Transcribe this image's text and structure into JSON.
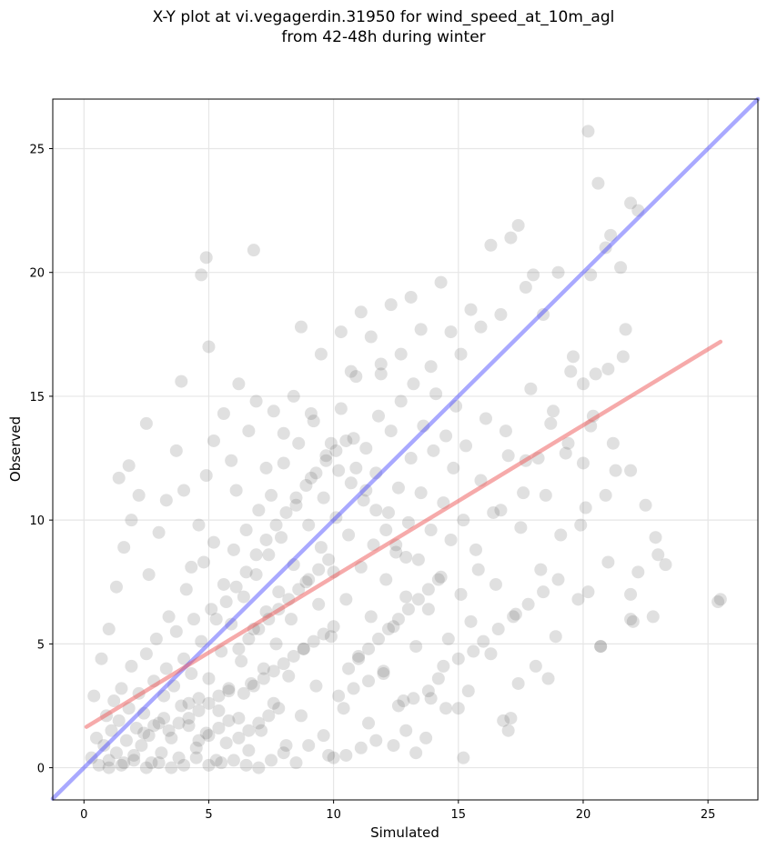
{
  "chart_data": {
    "type": "scatter",
    "title_lines": [
      "X-Y plot at vi.vegagerdin.31950 for wind_speed_at_10m_agl",
      "from 42-48h during winter"
    ],
    "xlabel": "Simulated",
    "ylabel": "Observed",
    "xlim": [
      -1.25,
      27.0
    ],
    "ylim": [
      -1.3,
      27.0
    ],
    "xticks": [
      0,
      5,
      10,
      15,
      20,
      25
    ],
    "yticks": [
      0,
      5,
      10,
      15,
      20,
      25
    ],
    "grid": true,
    "point_color": "#555555",
    "point_opacity": 0.18,
    "reference_line": {
      "name": "1:1",
      "color": "#4040ff",
      "from": [
        -1.25,
        -1.25
      ],
      "to": [
        27.0,
        27.0
      ]
    },
    "fit_line": {
      "color": "#ee5555",
      "from": [
        0.1,
        1.65
      ],
      "to": [
        25.5,
        17.2
      ]
    },
    "points": [
      [
        0.3,
        0.4
      ],
      [
        0.5,
        1.2
      ],
      [
        0.6,
        0.1
      ],
      [
        0.8,
        0.9
      ],
      [
        0.9,
        2.1
      ],
      [
        1.0,
        0.3
      ],
      [
        1.1,
        1.5
      ],
      [
        1.2,
        2.7
      ],
      [
        1.3,
        0.6
      ],
      [
        1.4,
        1.9
      ],
      [
        1.5,
        3.2
      ],
      [
        1.6,
        0.2
      ],
      [
        1.7,
        1.1
      ],
      [
        1.8,
        2.4
      ],
      [
        1.9,
        4.1
      ],
      [
        2.0,
        0.5
      ],
      [
        2.1,
        1.6
      ],
      [
        2.2,
        3.0
      ],
      [
        2.3,
        0.9
      ],
      [
        2.4,
        2.2
      ],
      [
        2.5,
        4.6
      ],
      [
        2.6,
        1.3
      ],
      [
        2.7,
        0.2
      ],
      [
        2.8,
        3.5
      ],
      [
        2.9,
        5.2
      ],
      [
        3.0,
        1.8
      ],
      [
        3.1,
        0.6
      ],
      [
        3.2,
        2.9
      ],
      [
        3.3,
        4.0
      ],
      [
        3.4,
        6.1
      ],
      [
        3.5,
        1.2
      ],
      [
        3.6,
        3.3
      ],
      [
        3.7,
        5.5
      ],
      [
        3.8,
        0.4
      ],
      [
        3.9,
        2.5
      ],
      [
        4.0,
        4.4
      ],
      [
        4.1,
        7.2
      ],
      [
        4.2,
        1.7
      ],
      [
        4.3,
        3.8
      ],
      [
        4.4,
        6.0
      ],
      [
        4.5,
        0.8
      ],
      [
        4.6,
        2.8
      ],
      [
        4.7,
        5.1
      ],
      [
        4.8,
        8.3
      ],
      [
        4.9,
        1.4
      ],
      [
        5.0,
        3.6
      ],
      [
        5.1,
        6.4
      ],
      [
        5.2,
        9.1
      ],
      [
        5.3,
        0.3
      ],
      [
        5.4,
        2.3
      ],
      [
        5.5,
        4.7
      ],
      [
        5.6,
        7.4
      ],
      [
        5.7,
        1.0
      ],
      [
        5.8,
        3.1
      ],
      [
        5.9,
        5.8
      ],
      [
        6.0,
        8.8
      ],
      [
        6.1,
        11.2
      ],
      [
        6.2,
        2.0
      ],
      [
        6.3,
        4.3
      ],
      [
        6.4,
        6.9
      ],
      [
        6.5,
        9.6
      ],
      [
        6.6,
        0.7
      ],
      [
        6.7,
        3.4
      ],
      [
        6.8,
        5.6
      ],
      [
        6.9,
        7.8
      ],
      [
        7.0,
        10.4
      ],
      [
        7.1,
        1.5
      ],
      [
        7.2,
        4.0
      ],
      [
        7.3,
        6.3
      ],
      [
        7.4,
        8.6
      ],
      [
        7.5,
        11.0
      ],
      [
        7.6,
        2.6
      ],
      [
        7.7,
        5.0
      ],
      [
        7.8,
        7.1
      ],
      [
        7.9,
        9.3
      ],
      [
        8.0,
        12.3
      ],
      [
        8.1,
        0.9
      ],
      [
        8.2,
        3.7
      ],
      [
        8.3,
        6.0
      ],
      [
        8.4,
        8.2
      ],
      [
        8.5,
        10.6
      ],
      [
        8.6,
        13.1
      ],
      [
        8.7,
        2.1
      ],
      [
        8.8,
        4.8
      ],
      [
        8.9,
        7.5
      ],
      [
        9.0,
        9.8
      ],
      [
        9.1,
        11.7
      ],
      [
        9.2,
        14.0
      ],
      [
        9.3,
        3.3
      ],
      [
        9.4,
        6.6
      ],
      [
        9.5,
        8.9
      ],
      [
        9.6,
        10.9
      ],
      [
        9.7,
        12.6
      ],
      [
        9.8,
        0.5
      ],
      [
        9.9,
        5.3
      ],
      [
        10.0,
        7.9
      ],
      [
        10.1,
        10.1
      ],
      [
        10.2,
        12.0
      ],
      [
        10.3,
        14.5
      ],
      [
        10.4,
        2.4
      ],
      [
        10.5,
        6.8
      ],
      [
        10.6,
        9.4
      ],
      [
        10.7,
        11.5
      ],
      [
        10.8,
        13.3
      ],
      [
        10.9,
        15.8
      ],
      [
        11.0,
        4.5
      ],
      [
        11.1,
        8.1
      ],
      [
        11.2,
        10.8
      ],
      [
        11.3,
        12.9
      ],
      [
        11.4,
        1.8
      ],
      [
        11.5,
        6.1
      ],
      [
        11.6,
        9.0
      ],
      [
        11.7,
        11.9
      ],
      [
        11.8,
        14.2
      ],
      [
        11.9,
        16.3
      ],
      [
        12.0,
        3.9
      ],
      [
        12.1,
        7.6
      ],
      [
        12.2,
        10.3
      ],
      [
        12.3,
        13.6
      ],
      [
        12.4,
        5.7
      ],
      [
        12.5,
        8.7
      ],
      [
        12.6,
        11.3
      ],
      [
        12.7,
        14.8
      ],
      [
        12.8,
        2.7
      ],
      [
        12.9,
        6.9
      ],
      [
        13.0,
        9.9
      ],
      [
        13.1,
        12.5
      ],
      [
        13.2,
        15.5
      ],
      [
        13.3,
        4.9
      ],
      [
        13.4,
        8.4
      ],
      [
        13.5,
        11.1
      ],
      [
        13.6,
        13.8
      ],
      [
        13.7,
        1.2
      ],
      [
        13.8,
        6.4
      ],
      [
        13.9,
        9.6
      ],
      [
        14.0,
        12.8
      ],
      [
        14.1,
        15.1
      ],
      [
        14.2,
        3.6
      ],
      [
        14.3,
        7.7
      ],
      [
        14.4,
        10.7
      ],
      [
        14.5,
        13.4
      ],
      [
        14.6,
        5.2
      ],
      [
        14.7,
        9.2
      ],
      [
        14.8,
        12.1
      ],
      [
        14.9,
        14.6
      ],
      [
        15.0,
        2.4
      ],
      [
        15.1,
        7.0
      ],
      [
        15.2,
        10.0
      ],
      [
        15.3,
        13.0
      ],
      [
        15.5,
        5.9
      ],
      [
        15.7,
        8.8
      ],
      [
        15.9,
        11.6
      ],
      [
        16.1,
        14.1
      ],
      [
        16.3,
        4.6
      ],
      [
        16.5,
        7.4
      ],
      [
        16.7,
        10.4
      ],
      [
        16.9,
        13.6
      ],
      [
        17.1,
        2.0
      ],
      [
        17.3,
        6.2
      ],
      [
        17.5,
        9.7
      ],
      [
        17.7,
        12.4
      ],
      [
        17.9,
        15.3
      ],
      [
        18.1,
        4.1
      ],
      [
        18.3,
        8.0
      ],
      [
        18.5,
        11.0
      ],
      [
        18.7,
        13.9
      ],
      [
        18.9,
        5.3
      ],
      [
        19.1,
        9.4
      ],
      [
        19.3,
        12.7
      ],
      [
        19.5,
        16.0
      ],
      [
        19.8,
        6.8
      ],
      [
        20.1,
        10.5
      ],
      [
        20.4,
        14.2
      ],
      [
        20.7,
        4.9
      ],
      [
        21.0,
        8.3
      ],
      [
        21.3,
        12.0
      ],
      [
        21.6,
        16.6
      ],
      [
        21.9,
        6.0
      ],
      [
        22.2,
        7.9
      ],
      [
        22.5,
        10.6
      ],
      [
        22.8,
        6.1
      ],
      [
        23.0,
        8.6
      ],
      [
        23.3,
        8.2
      ],
      [
        25.4,
        6.7
      ],
      [
        25.5,
        6.8
      ],
      [
        0.4,
        2.9
      ],
      [
        0.7,
        4.4
      ],
      [
        1.0,
        5.6
      ],
      [
        1.3,
        7.3
      ],
      [
        1.6,
        8.9
      ],
      [
        1.9,
        10.0
      ],
      [
        2.2,
        11.0
      ],
      [
        2.6,
        7.8
      ],
      [
        3.0,
        9.5
      ],
      [
        3.3,
        10.8
      ],
      [
        3.7,
        12.8
      ],
      [
        4.0,
        11.2
      ],
      [
        4.3,
        8.1
      ],
      [
        4.6,
        9.8
      ],
      [
        4.9,
        11.8
      ],
      [
        5.2,
        13.2
      ],
      [
        5.6,
        14.3
      ],
      [
        5.9,
        12.4
      ],
      [
        6.2,
        15.5
      ],
      [
        6.6,
        13.6
      ],
      [
        6.9,
        14.8
      ],
      [
        7.3,
        12.1
      ],
      [
        7.6,
        14.4
      ],
      [
        8.0,
        13.5
      ],
      [
        8.4,
        15.0
      ],
      [
        8.7,
        17.8
      ],
      [
        9.1,
        14.3
      ],
      [
        9.5,
        16.7
      ],
      [
        9.9,
        13.1
      ],
      [
        10.3,
        17.6
      ],
      [
        10.7,
        16.0
      ],
      [
        11.1,
        18.4
      ],
      [
        11.5,
        17.4
      ],
      [
        11.9,
        15.9
      ],
      [
        12.3,
        18.7
      ],
      [
        12.7,
        16.7
      ],
      [
        13.1,
        19.0
      ],
      [
        13.5,
        17.7
      ],
      [
        13.9,
        16.2
      ],
      [
        14.3,
        19.6
      ],
      [
        14.7,
        17.6
      ],
      [
        15.1,
        16.7
      ],
      [
        15.5,
        18.5
      ],
      [
        15.9,
        17.8
      ],
      [
        16.3,
        21.1
      ],
      [
        16.7,
        18.3
      ],
      [
        17.1,
        21.4
      ],
      [
        17.4,
        21.9
      ],
      [
        17.7,
        19.4
      ],
      [
        18.0,
        19.9
      ],
      [
        18.4,
        18.3
      ],
      [
        19.0,
        20.0
      ],
      [
        19.6,
        16.6
      ],
      [
        20.0,
        15.5
      ],
      [
        20.3,
        19.9
      ],
      [
        20.6,
        23.6
      ],
      [
        20.9,
        21.0
      ],
      [
        21.1,
        21.5
      ],
      [
        21.5,
        20.2
      ],
      [
        21.9,
        22.8
      ],
      [
        22.2,
        22.5
      ],
      [
        20.2,
        25.7
      ],
      [
        4.9,
        20.6
      ],
      [
        4.7,
        19.9
      ],
      [
        6.8,
        20.9
      ],
      [
        5.0,
        17.0
      ],
      [
        3.9,
        15.6
      ],
      [
        2.5,
        13.9
      ],
      [
        1.4,
        11.7
      ],
      [
        1.8,
        12.2
      ],
      [
        20.5,
        15.9
      ],
      [
        21.0,
        16.1
      ],
      [
        21.7,
        17.7
      ],
      [
        21.9,
        12.0
      ],
      [
        21.2,
        13.1
      ],
      [
        20.3,
        13.8
      ],
      [
        19.9,
        9.8
      ],
      [
        20.2,
        7.1
      ],
      [
        20.7,
        4.9
      ],
      [
        22.0,
        5.9
      ],
      [
        22.9,
        9.3
      ],
      [
        21.9,
        7.0
      ],
      [
        20.9,
        11.0
      ],
      [
        20.0,
        12.3
      ],
      [
        19.4,
        13.1
      ],
      [
        18.8,
        14.4
      ],
      [
        18.2,
        12.5
      ],
      [
        17.6,
        11.1
      ],
      [
        17.0,
        12.6
      ],
      [
        16.4,
        10.3
      ],
      [
        15.8,
        8.0
      ],
      [
        15.4,
        3.1
      ],
      [
        15.2,
        0.4
      ],
      [
        14.5,
        2.4
      ],
      [
        13.9,
        2.8
      ],
      [
        13.3,
        0.6
      ],
      [
        12.9,
        1.5
      ],
      [
        12.4,
        0.9
      ],
      [
        11.7,
        1.1
      ],
      [
        11.1,
        0.8
      ],
      [
        10.5,
        0.5
      ],
      [
        10.0,
        0.4
      ],
      [
        9.6,
        1.3
      ],
      [
        9.0,
        0.9
      ],
      [
        8.5,
        0.2
      ],
      [
        8.0,
        0.6
      ],
      [
        7.5,
        0.3
      ],
      [
        7.0,
        0.0
      ],
      [
        6.5,
        0.1
      ],
      [
        6.0,
        0.3
      ],
      [
        5.5,
        0.2
      ],
      [
        5.0,
        0.1
      ],
      [
        4.5,
        0.4
      ],
      [
        4.0,
        0.1
      ],
      [
        3.5,
        0.0
      ],
      [
        3.0,
        0.2
      ],
      [
        2.5,
        0.0
      ],
      [
        2.0,
        0.3
      ],
      [
        1.5,
        0.1
      ],
      [
        1.0,
        0.0
      ],
      [
        5.3,
        6.0
      ],
      [
        5.7,
        6.7
      ],
      [
        6.1,
        7.3
      ],
      [
        6.5,
        7.9
      ],
      [
        6.9,
        8.6
      ],
      [
        7.3,
        9.2
      ],
      [
        7.7,
        9.8
      ],
      [
        8.1,
        10.3
      ],
      [
        8.5,
        10.9
      ],
      [
        8.9,
        11.4
      ],
      [
        9.3,
        11.9
      ],
      [
        9.7,
        12.4
      ],
      [
        10.1,
        12.8
      ],
      [
        10.5,
        13.2
      ],
      [
        10.9,
        12.1
      ],
      [
        11.3,
        11.2
      ],
      [
        11.7,
        10.4
      ],
      [
        12.1,
        9.6
      ],
      [
        12.5,
        9.0
      ],
      [
        12.9,
        8.5
      ],
      [
        6.2,
        4.8
      ],
      [
        6.6,
        5.2
      ],
      [
        7.0,
        5.6
      ],
      [
        7.4,
        6.0
      ],
      [
        7.8,
        6.4
      ],
      [
        8.2,
        6.8
      ],
      [
        8.6,
        7.2
      ],
      [
        9.0,
        7.6
      ],
      [
        9.4,
        8.0
      ],
      [
        9.8,
        8.4
      ],
      [
        6.4,
        3.0
      ],
      [
        6.8,
        3.3
      ],
      [
        7.2,
        3.6
      ],
      [
        7.6,
        3.9
      ],
      [
        8.0,
        4.2
      ],
      [
        8.4,
        4.5
      ],
      [
        8.8,
        4.8
      ],
      [
        9.2,
        5.1
      ],
      [
        9.6,
        5.4
      ],
      [
        10.0,
        5.7
      ],
      [
        4.2,
        2.0
      ],
      [
        4.6,
        2.3
      ],
      [
        5.0,
        2.6
      ],
      [
        5.4,
        2.9
      ],
      [
        5.8,
        3.2
      ],
      [
        6.2,
        1.2
      ],
      [
        6.6,
        1.5
      ],
      [
        7.0,
        1.8
      ],
      [
        7.4,
        2.1
      ],
      [
        7.8,
        2.4
      ],
      [
        3.4,
        1.5
      ],
      [
        3.8,
        1.8
      ],
      [
        4.2,
        2.6
      ],
      [
        4.6,
        1.1
      ],
      [
        5.0,
        1.3
      ],
      [
        5.4,
        1.6
      ],
      [
        5.8,
        1.9
      ],
      [
        2.4,
        1.4
      ],
      [
        2.8,
        1.7
      ],
      [
        3.2,
        2.0
      ],
      [
        10.6,
        4.0
      ],
      [
        11.0,
        4.4
      ],
      [
        11.4,
        4.8
      ],
      [
        11.8,
        5.2
      ],
      [
        12.2,
        5.6
      ],
      [
        12.6,
        6.0
      ],
      [
        13.0,
        6.4
      ],
      [
        13.4,
        6.8
      ],
      [
        13.8,
        7.2
      ],
      [
        14.2,
        7.6
      ],
      [
        10.2,
        2.9
      ],
      [
        10.8,
        3.2
      ],
      [
        11.4,
        3.5
      ],
      [
        12.0,
        3.8
      ],
      [
        12.6,
        2.5
      ],
      [
        13.2,
        2.8
      ],
      [
        13.8,
        3.1
      ],
      [
        14.4,
        4.1
      ],
      [
        15.0,
        4.4
      ],
      [
        15.6,
        4.7
      ],
      [
        16.0,
        5.1
      ],
      [
        16.6,
        5.6
      ],
      [
        17.2,
        6.1
      ],
      [
        17.8,
        6.6
      ],
      [
        18.4,
        7.1
      ],
      [
        19.0,
        7.6
      ],
      [
        16.8,
        1.9
      ],
      [
        17.0,
        1.5
      ],
      [
        17.4,
        3.4
      ],
      [
        18.6,
        3.6
      ]
    ]
  }
}
